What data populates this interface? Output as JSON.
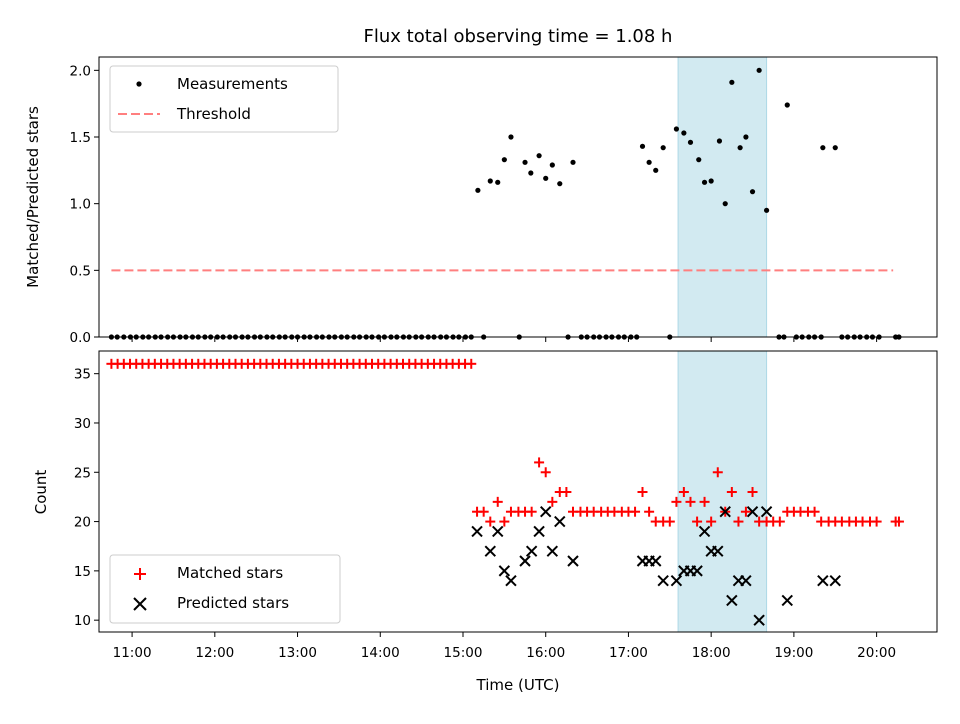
{
  "chart_data": {
    "title": "Flux total observing time = 1.08 h",
    "xlabel": "Time (UTC)",
    "xlim": [
      10.6,
      20.73
    ],
    "x_ticks": [
      {
        "v": 11,
        "label": "11:00"
      },
      {
        "v": 12,
        "label": "12:00"
      },
      {
        "v": 13,
        "label": "13:00"
      },
      {
        "v": 14,
        "label": "14:00"
      },
      {
        "v": 15,
        "label": "15:00"
      },
      {
        "v": 16,
        "label": "16:00"
      },
      {
        "v": 17,
        "label": "17:00"
      },
      {
        "v": 18,
        "label": "18:00"
      },
      {
        "v": 19,
        "label": "19:00"
      },
      {
        "v": 20,
        "label": "20:00"
      }
    ],
    "highlight_span": {
      "x0": 17.6,
      "x1": 18.67,
      "color": "#add8e6"
    },
    "colors": {
      "measurements": "#000000",
      "threshold": "#ff7f7f",
      "matched": "#ff0000",
      "predicted": "#000000",
      "span": "#add8e6"
    },
    "panels": [
      {
        "type": "scatter",
        "ylabel": "Matched/Predicted stars",
        "ylim": [
          0,
          2.1
        ],
        "y_ticks": [
          {
            "v": 0,
            "label": "0.0"
          },
          {
            "v": 0.5,
            "label": "0.5"
          },
          {
            "v": 1.0,
            "label": "1.0"
          },
          {
            "v": 1.5,
            "label": "1.5"
          },
          {
            "v": 2.0,
            "label": "2.0"
          }
        ],
        "legend": [
          {
            "label": "Measurements",
            "marker": "dot"
          },
          {
            "label": "Threshold",
            "marker": "dash"
          }
        ],
        "threshold": {
          "y": 0.5,
          "x0": 10.75,
          "x1": 20.2
        },
        "measurements_zero_x": [
          10.75,
          10.82,
          10.9,
          10.98,
          11.05,
          11.13,
          11.2,
          11.28,
          11.35,
          11.43,
          11.5,
          11.58,
          11.65,
          11.73,
          11.8,
          11.88,
          11.95,
          12.03,
          12.1,
          12.18,
          12.25,
          12.33,
          12.4,
          12.48,
          12.55,
          12.63,
          12.7,
          12.78,
          12.85,
          12.93,
          13.0,
          13.08,
          13.15,
          13.23,
          13.3,
          13.38,
          13.45,
          13.53,
          13.6,
          13.68,
          13.75,
          13.83,
          13.9,
          13.98,
          14.05,
          14.13,
          14.2,
          14.28,
          14.35,
          14.43,
          14.5,
          14.58,
          14.65,
          14.73,
          14.8,
          14.88,
          14.95,
          15.03,
          15.1,
          15.25,
          15.68,
          16.27,
          16.43,
          16.5,
          16.58,
          16.65,
          16.73,
          16.8,
          16.88,
          16.95,
          17.03,
          17.1,
          17.5,
          18.82,
          18.88,
          19.03,
          19.1,
          19.18,
          19.25,
          19.33,
          19.58,
          19.65,
          19.73,
          19.8,
          19.88,
          19.95,
          20.03,
          20.23,
          20.27
        ],
        "measurements": [
          {
            "x": 15.18,
            "y": 1.1
          },
          {
            "x": 15.33,
            "y": 1.17
          },
          {
            "x": 15.42,
            "y": 1.16
          },
          {
            "x": 15.5,
            "y": 1.33
          },
          {
            "x": 15.58,
            "y": 1.5
          },
          {
            "x": 15.75,
            "y": 1.31
          },
          {
            "x": 15.82,
            "y": 1.23
          },
          {
            "x": 15.92,
            "y": 1.36
          },
          {
            "x": 16.0,
            "y": 1.19
          },
          {
            "x": 16.08,
            "y": 1.29
          },
          {
            "x": 16.17,
            "y": 1.15
          },
          {
            "x": 16.33,
            "y": 1.31
          },
          {
            "x": 17.17,
            "y": 1.43
          },
          {
            "x": 17.25,
            "y": 1.31
          },
          {
            "x": 17.33,
            "y": 1.25
          },
          {
            "x": 17.42,
            "y": 1.42
          },
          {
            "x": 17.58,
            "y": 1.56
          },
          {
            "x": 17.67,
            "y": 1.53
          },
          {
            "x": 17.75,
            "y": 1.46
          },
          {
            "x": 17.85,
            "y": 1.33
          },
          {
            "x": 17.92,
            "y": 1.16
          },
          {
            "x": 18.0,
            "y": 1.17
          },
          {
            "x": 18.1,
            "y": 1.47
          },
          {
            "x": 18.17,
            "y": 1.0
          },
          {
            "x": 18.25,
            "y": 1.91
          },
          {
            "x": 18.35,
            "y": 1.42
          },
          {
            "x": 18.42,
            "y": 1.5
          },
          {
            "x": 18.5,
            "y": 1.09
          },
          {
            "x": 18.58,
            "y": 2.0
          },
          {
            "x": 18.67,
            "y": 0.95
          },
          {
            "x": 18.92,
            "y": 1.74
          },
          {
            "x": 19.35,
            "y": 1.42
          },
          {
            "x": 19.5,
            "y": 1.42
          }
        ]
      },
      {
        "type": "scatter",
        "ylabel": "Count",
        "ylim": [
          8.8,
          37.3
        ],
        "y_ticks": [
          {
            "v": 10,
            "label": "10"
          },
          {
            "v": 15,
            "label": "15"
          },
          {
            "v": 20,
            "label": "20"
          },
          {
            "v": 25,
            "label": "25"
          },
          {
            "v": 30,
            "label": "30"
          },
          {
            "v": 35,
            "label": "35"
          }
        ],
        "legend": [
          {
            "label": "Matched stars",
            "marker": "plus"
          },
          {
            "label": "Predicted stars",
            "marker": "cross"
          }
        ],
        "matched_early": {
          "x_start": 10.75,
          "x_step": 0.075,
          "count": 59,
          "y": 36
        },
        "matched": [
          {
            "x": 15.17,
            "y": 21
          },
          {
            "x": 15.25,
            "y": 21
          },
          {
            "x": 15.33,
            "y": 20
          },
          {
            "x": 15.42,
            "y": 22
          },
          {
            "x": 15.5,
            "y": 20
          },
          {
            "x": 15.58,
            "y": 21
          },
          {
            "x": 15.67,
            "y": 21
          },
          {
            "x": 15.75,
            "y": 21
          },
          {
            "x": 15.83,
            "y": 21
          },
          {
            "x": 15.92,
            "y": 26
          },
          {
            "x": 16.0,
            "y": 25
          },
          {
            "x": 16.08,
            "y": 22
          },
          {
            "x": 16.17,
            "y": 23
          },
          {
            "x": 16.25,
            "y": 23
          },
          {
            "x": 16.33,
            "y": 21
          },
          {
            "x": 16.42,
            "y": 21
          },
          {
            "x": 16.5,
            "y": 21
          },
          {
            "x": 16.58,
            "y": 21
          },
          {
            "x": 16.67,
            "y": 21
          },
          {
            "x": 16.75,
            "y": 21
          },
          {
            "x": 16.83,
            "y": 21
          },
          {
            "x": 16.92,
            "y": 21
          },
          {
            "x": 17.0,
            "y": 21
          },
          {
            "x": 17.08,
            "y": 21
          },
          {
            "x": 17.17,
            "y": 23
          },
          {
            "x": 17.25,
            "y": 21
          },
          {
            "x": 17.33,
            "y": 20
          },
          {
            "x": 17.42,
            "y": 20
          },
          {
            "x": 17.5,
            "y": 20
          },
          {
            "x": 17.58,
            "y": 22
          },
          {
            "x": 17.67,
            "y": 23
          },
          {
            "x": 17.75,
            "y": 22
          },
          {
            "x": 17.83,
            "y": 20
          },
          {
            "x": 17.92,
            "y": 22
          },
          {
            "x": 18.0,
            "y": 20
          },
          {
            "x": 18.08,
            "y": 25
          },
          {
            "x": 18.17,
            "y": 21
          },
          {
            "x": 18.25,
            "y": 23
          },
          {
            "x": 18.33,
            "y": 20
          },
          {
            "x": 18.42,
            "y": 21
          },
          {
            "x": 18.5,
            "y": 23
          },
          {
            "x": 18.58,
            "y": 20
          },
          {
            "x": 18.67,
            "y": 20
          },
          {
            "x": 18.75,
            "y": 20
          },
          {
            "x": 18.83,
            "y": 20
          },
          {
            "x": 18.92,
            "y": 21
          },
          {
            "x": 19.0,
            "y": 21
          },
          {
            "x": 19.08,
            "y": 21
          },
          {
            "x": 19.17,
            "y": 21
          },
          {
            "x": 19.25,
            "y": 21
          },
          {
            "x": 19.33,
            "y": 20
          },
          {
            "x": 19.42,
            "y": 20
          },
          {
            "x": 19.5,
            "y": 20
          },
          {
            "x": 19.58,
            "y": 20
          },
          {
            "x": 19.67,
            "y": 20
          },
          {
            "x": 19.75,
            "y": 20
          },
          {
            "x": 19.83,
            "y": 20
          },
          {
            "x": 19.92,
            "y": 20
          },
          {
            "x": 20.0,
            "y": 20
          },
          {
            "x": 20.23,
            "y": 20
          },
          {
            "x": 20.27,
            "y": 20
          }
        ],
        "predicted": [
          {
            "x": 15.17,
            "y": 19
          },
          {
            "x": 15.33,
            "y": 17
          },
          {
            "x": 15.42,
            "y": 19
          },
          {
            "x": 15.5,
            "y": 15
          },
          {
            "x": 15.58,
            "y": 14
          },
          {
            "x": 15.75,
            "y": 16
          },
          {
            "x": 15.83,
            "y": 17
          },
          {
            "x": 15.92,
            "y": 19
          },
          {
            "x": 16.0,
            "y": 21
          },
          {
            "x": 16.08,
            "y": 17
          },
          {
            "x": 16.17,
            "y": 20
          },
          {
            "x": 16.33,
            "y": 16
          },
          {
            "x": 17.17,
            "y": 16
          },
          {
            "x": 17.25,
            "y": 16
          },
          {
            "x": 17.33,
            "y": 16
          },
          {
            "x": 17.42,
            "y": 14
          },
          {
            "x": 17.58,
            "y": 14
          },
          {
            "x": 17.67,
            "y": 15
          },
          {
            "x": 17.75,
            "y": 15
          },
          {
            "x": 17.83,
            "y": 15
          },
          {
            "x": 17.92,
            "y": 19
          },
          {
            "x": 18.0,
            "y": 17
          },
          {
            "x": 18.08,
            "y": 17
          },
          {
            "x": 18.17,
            "y": 21
          },
          {
            "x": 18.25,
            "y": 12
          },
          {
            "x": 18.33,
            "y": 14
          },
          {
            "x": 18.42,
            "y": 14
          },
          {
            "x": 18.5,
            "y": 21
          },
          {
            "x": 18.58,
            "y": 10
          },
          {
            "x": 18.67,
            "y": 21
          },
          {
            "x": 18.92,
            "y": 12
          },
          {
            "x": 19.35,
            "y": 14
          },
          {
            "x": 19.5,
            "y": 14
          }
        ]
      }
    ]
  }
}
